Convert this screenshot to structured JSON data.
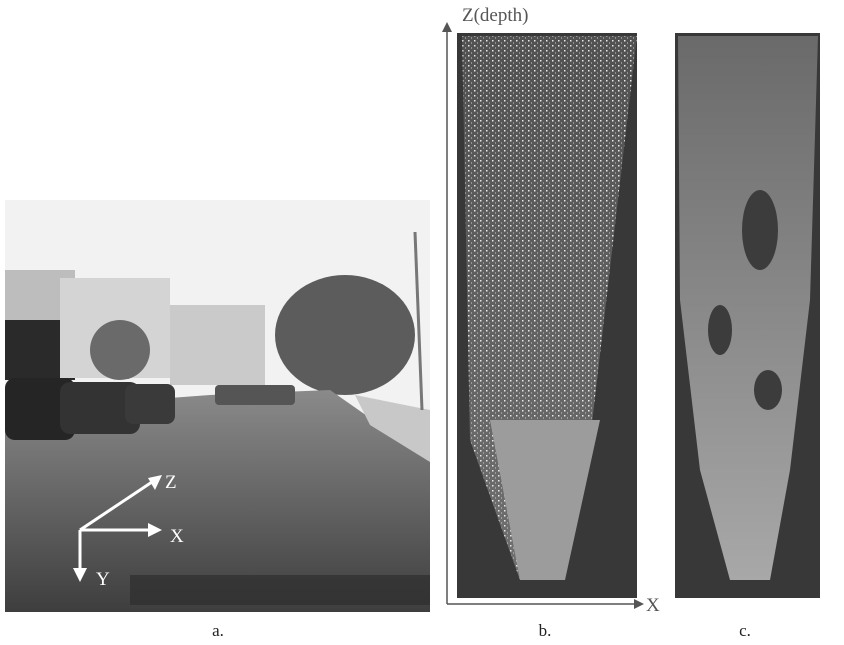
{
  "panels": [
    {
      "caption": "a.",
      "axes": {
        "z": "Z",
        "x": "X",
        "y": "Y"
      }
    },
    {
      "caption": "b.",
      "axes": {
        "z": "Z(depth)",
        "x": "X"
      }
    },
    {
      "caption": "c."
    }
  ]
}
